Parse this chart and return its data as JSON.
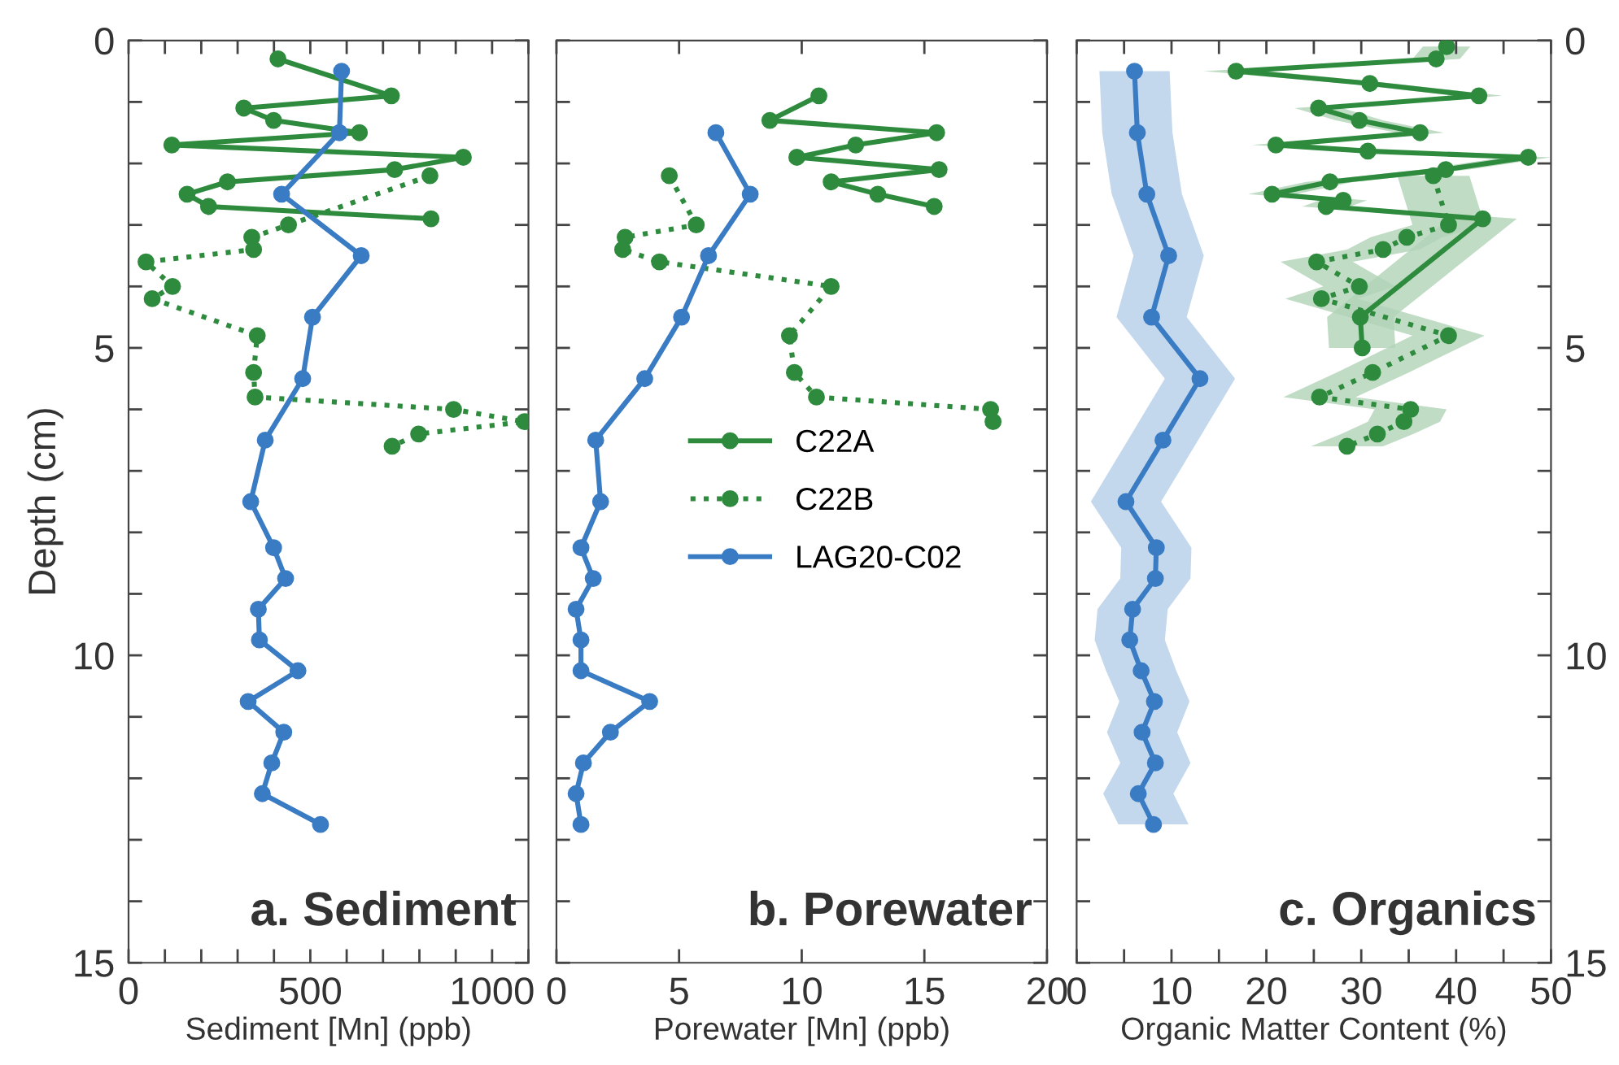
{
  "chart_data": [
    {
      "type": "line",
      "orientation": "horizontal",
      "title": "a. Sediment",
      "xlabel": "Sediment [Mn] (ppb)",
      "ylabel": "Depth (cm)",
      "xlim": [
        0,
        1100
      ],
      "xticks": [
        0,
        {
          "value": 100,
          "label": null
        },
        {
          "value": 200,
          "label": null
        },
        {
          "value": 300,
          "label": null
        },
        {
          "value": 400,
          "label": null
        },
        500,
        {
          "value": 600,
          "label": null
        },
        {
          "value": 700,
          "label": null
        },
        {
          "value": 800,
          "label": null
        },
        {
          "value": 900,
          "label": null
        },
        1000,
        {
          "value": 1100,
          "label": null
        }
      ],
      "ylim": [
        15,
        0
      ],
      "yticks": [
        0,
        {
          "value": 1,
          "label": null
        },
        {
          "value": 2,
          "label": null
        },
        {
          "value": 3,
          "label": null
        },
        {
          "value": 4,
          "label": null
        },
        5,
        {
          "value": 6,
          "label": null
        },
        {
          "value": 7,
          "label": null
        },
        {
          "value": 8,
          "label": null
        },
        {
          "value": 9,
          "label": null
        },
        10,
        {
          "value": 11,
          "label": null
        },
        {
          "value": 12,
          "label": null
        },
        {
          "value": 13,
          "label": null
        },
        {
          "value": 14,
          "label": null
        },
        15
      ],
      "grid": false,
      "marker": "circle",
      "series": [
        {
          "color": "#2e8b3e",
          "line_style": "solid",
          "x": [
            0.3,
            0.9,
            1.1,
            1.3,
            1.5,
            1.7,
            1.9,
            2.1,
            2.3,
            2.5,
            2.7,
            2.9
          ],
          "values": [
            411,
            723,
            317,
            399,
            635,
            119,
            921,
            732,
            272,
            161,
            220,
            832
          ]
        },
        {
          "color": "#2e8b3e",
          "line_style": "dotted",
          "x": [
            2.2,
            3.0,
            3.2,
            3.4,
            3.6,
            4.0,
            4.2,
            4.8,
            5.4,
            5.8,
            6.0,
            6.2,
            6.4,
            6.6
          ],
          "values": [
            829,
            440,
            339,
            344,
            48,
            121,
            65,
            354,
            344,
            348,
            894,
            1089,
            798,
            725
          ]
        },
        {
          "color": "#3a7cc4",
          "line_style": "solid",
          "x": [
            0.5,
            1.5,
            2.5,
            3.5,
            4.5,
            5.5,
            6.5,
            7.5,
            8.25,
            8.75,
            9.25,
            9.75,
            10.25,
            10.75,
            11.25,
            11.75,
            12.25,
            12.75
          ],
          "values": [
            586,
            580,
            421,
            640,
            506,
            479,
            376,
            336,
            399,
            432,
            357,
            360,
            466,
            329,
            427,
            394,
            368,
            528
          ]
        }
      ]
    },
    {
      "type": "line",
      "orientation": "horizontal",
      "title": "b. Porewater",
      "xlabel": "Porewater [Mn] (ppb)",
      "xlim": [
        0,
        20
      ],
      "xticks": [
        0,
        5,
        10,
        15,
        20
      ],
      "ylim": [
        15,
        0
      ],
      "yticks": [
        0,
        {
          "value": 1,
          "label": null
        },
        {
          "value": 2,
          "label": null
        },
        {
          "value": 3,
          "label": null
        },
        {
          "value": 4,
          "label": null
        },
        5,
        {
          "value": 6,
          "label": null
        },
        {
          "value": 7,
          "label": null
        },
        {
          "value": 8,
          "label": null
        },
        {
          "value": 9,
          "label": null
        },
        10,
        {
          "value": 11,
          "label": null
        },
        {
          "value": 12,
          "label": null
        },
        {
          "value": 13,
          "label": null
        },
        {
          "value": 14,
          "label": null
        },
        15
      ],
      "tick_labels": "x",
      "grid": false,
      "legend": "center",
      "marker": "circle",
      "series": [
        {
          "name": "C22A",
          "color": "#2e8b3e",
          "line_style": "solid",
          "x": [
            0.9,
            1.3,
            1.5,
            1.7,
            1.9,
            2.1,
            2.3,
            2.5,
            2.7
          ],
          "values": [
            10.7,
            8.7,
            15.5,
            12.2,
            9.8,
            15.6,
            11.2,
            13.1,
            15.4
          ]
        },
        {
          "name": "C22B",
          "color": "#2e8b3e",
          "line_style": "dotted",
          "x": [
            2.2,
            3.0,
            3.2,
            3.4,
            3.6,
            4.0,
            4.8,
            5.4,
            5.8,
            6.0,
            6.2
          ],
          "values": [
            4.6,
            5.7,
            2.8,
            2.7,
            4.2,
            11.2,
            9.5,
            9.7,
            10.6,
            17.7,
            17.8
          ]
        },
        {
          "name": "LAG20-C02",
          "color": "#3a7cc4",
          "line_style": "solid",
          "x": [
            1.5,
            2.5,
            3.5,
            4.5,
            5.5,
            6.5,
            7.5,
            8.25,
            8.75,
            9.25,
            9.75,
            10.25,
            10.75,
            11.25,
            11.75,
            12.25,
            12.75
          ],
          "values": [
            6.5,
            7.9,
            6.2,
            5.1,
            3.6,
            1.6,
            1.8,
            1.0,
            1.5,
            0.8,
            1.0,
            1.0,
            3.8,
            2.2,
            1.1,
            0.8,
            1.0
          ]
        }
      ]
    },
    {
      "type": "line",
      "orientation": "horizontal",
      "title": "c. Organics",
      "xlabel": "Organic Matter Content (%)",
      "xlim": [
        0,
        50
      ],
      "xticks": [
        0,
        {
          "value": 5,
          "label": null
        },
        10,
        {
          "value": 15,
          "label": null
        },
        20,
        {
          "value": 25,
          "label": null
        },
        30,
        {
          "value": 35,
          "label": null
        },
        40,
        {
          "value": 45,
          "label": null
        },
        50
      ],
      "ylim": [
        15,
        0
      ],
      "yticks": [
        0,
        {
          "value": 1,
          "label": null
        },
        {
          "value": 2,
          "label": null
        },
        {
          "value": 3,
          "label": null
        },
        {
          "value": 4,
          "label": null
        },
        5,
        {
          "value": 6,
          "label": null
        },
        {
          "value": 7,
          "label": null
        },
        {
          "value": 8,
          "label": null
        },
        {
          "value": 9,
          "label": null
        },
        10,
        {
          "value": 11,
          "label": null
        },
        {
          "value": 12,
          "label": null
        },
        {
          "value": 13,
          "label": null
        },
        {
          "value": 14,
          "label": null
        },
        15
      ],
      "grid": false,
      "marker": "circle",
      "series": [
        {
          "color": "#2e8b3e",
          "line_style": "solid",
          "x": [
            0.1,
            0.3,
            0.5,
            0.7,
            0.9,
            1.1,
            1.3,
            1.5,
            1.7,
            1.8,
            1.9,
            2.1,
            2.3,
            2.5,
            2.6,
            2.7,
            2.9,
            4.5,
            5.0
          ],
          "values": [
            39.0,
            37.9,
            16.8,
            30.9,
            42.4,
            25.5,
            29.8,
            36.2,
            21.0,
            30.7,
            47.6,
            38.9,
            26.7,
            20.6,
            28.1,
            26.3,
            42.8,
            29.9,
            30.1
          ],
          "lower": [
            36.5,
            35.4,
            13.4,
            28.4,
            39.9,
            23.0,
            27.3,
            33.7,
            18.5,
            28.2,
            45.1,
            36.4,
            24.2,
            18.1,
            25.6,
            23.8,
            39.2,
            26.4,
            26.6
          ],
          "upper": [
            41.5,
            40.4,
            20.2,
            33.4,
            44.9,
            28.0,
            32.3,
            38.7,
            23.5,
            33.2,
            50.0,
            41.4,
            29.2,
            23.1,
            30.6,
            28.8,
            46.4,
            33.4,
            33.6
          ]
        },
        {
          "color": "#2e8b3e",
          "line_style": "dotted",
          "x": [
            2.2,
            3.0,
            3.2,
            3.4,
            3.6,
            4.0,
            4.2,
            4.8,
            5.4,
            5.8,
            6.0,
            6.2,
            6.4,
            6.6
          ],
          "values": [
            37.6,
            39.2,
            34.8,
            32.3,
            25.3,
            29.8,
            25.8,
            39.2,
            31.2,
            25.6,
            35.2,
            34.5,
            31.7,
            28.5
          ],
          "lower": [
            33.8,
            35.4,
            31.0,
            28.5,
            21.5,
            26.0,
            22.0,
            35.4,
            27.4,
            21.8,
            31.4,
            30.7,
            27.9,
            24.7
          ],
          "upper": [
            41.4,
            43.0,
            38.6,
            36.1,
            29.1,
            33.6,
            29.6,
            43.0,
            35.0,
            29.4,
            39.0,
            38.3,
            35.5,
            32.3
          ]
        },
        {
          "color": "#3a7cc4",
          "line_style": "solid",
          "x": [
            0.5,
            1.5,
            2.5,
            3.5,
            4.5,
            5.5,
            6.5,
            7.5,
            8.25,
            8.75,
            9.25,
            9.75,
            10.25,
            10.75,
            11.25,
            11.75,
            12.25,
            12.75
          ],
          "values": [
            6.1,
            6.4,
            7.4,
            9.7,
            7.9,
            13.0,
            9.1,
            5.2,
            8.4,
            8.3,
            5.9,
            5.6,
            6.8,
            8.2,
            6.9,
            8.3,
            6.5,
            8.1
          ],
          "lower": [
            2.4,
            2.7,
            3.7,
            6.0,
            4.2,
            9.3,
            5.4,
            1.5,
            4.7,
            4.6,
            2.2,
            1.9,
            3.1,
            4.5,
            3.2,
            4.6,
            2.8,
            4.4
          ],
          "upper": [
            9.8,
            10.1,
            11.1,
            13.4,
            11.6,
            16.7,
            12.8,
            8.9,
            12.1,
            12.0,
            9.6,
            9.3,
            10.5,
            11.9,
            10.6,
            12.0,
            10.2,
            11.8
          ]
        }
      ]
    }
  ]
}
